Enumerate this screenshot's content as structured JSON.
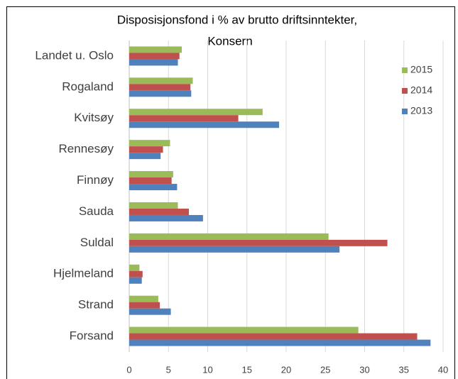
{
  "chart_data": {
    "type": "barh",
    "title": [
      "Disposisjonsfond i % av brutto driftsinntekter,",
      "Konsern"
    ],
    "categories": [
      "Landet u. Oslo",
      "Rogaland",
      "Kvitsøy",
      "Rennesøy",
      "Finnøy",
      "Sauda",
      "Suldal",
      "Hjelmeland",
      "Strand",
      "Forsand"
    ],
    "series": [
      {
        "name": "2015",
        "color": "#9bbb59",
        "values": [
          6.7,
          8.1,
          17.0,
          5.2,
          5.6,
          6.2,
          25.4,
          1.3,
          3.7,
          29.2
        ]
      },
      {
        "name": "2014",
        "color": "#c0504d",
        "values": [
          6.4,
          7.8,
          13.9,
          4.3,
          5.4,
          7.6,
          32.9,
          1.7,
          3.9,
          36.7
        ]
      },
      {
        "name": "2013",
        "color": "#4f81bd",
        "values": [
          6.2,
          7.9,
          19.1,
          4.0,
          6.1,
          9.4,
          26.8,
          1.6,
          5.3,
          38.4
        ]
      }
    ],
    "xlim": [
      0,
      40
    ],
    "xticks": [
      0,
      5,
      10,
      15,
      20,
      25,
      30,
      35,
      40
    ],
    "grid": true,
    "legend": "right"
  }
}
